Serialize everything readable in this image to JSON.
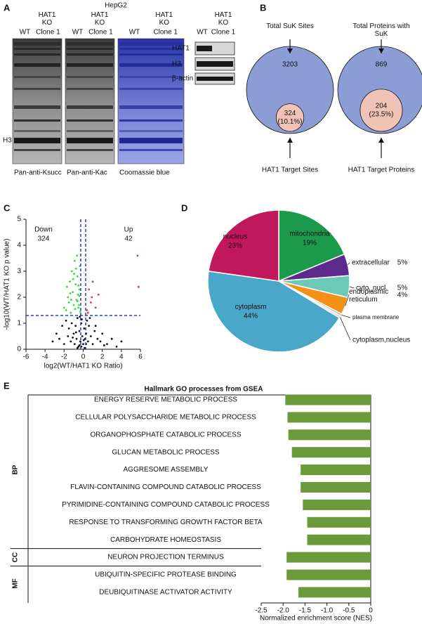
{
  "panel_labels": [
    "A",
    "B",
    "C",
    "D",
    "E"
  ],
  "blots": {
    "cell_line": "HepG2",
    "lanes": {
      "wt": "WT",
      "ko": "HAT1 KO",
      "clone": "Clone 1"
    },
    "captions": [
      "Pan-anti-Ksucc",
      "Pan-anti-Kac",
      "Coomassie blue"
    ],
    "marker": "H3",
    "small_blots": [
      "HAT1",
      "H3",
      "β-actin"
    ]
  },
  "venn": [
    {
      "title": "Total SuK Sites",
      "total": 3203,
      "target": 324,
      "percent": {
        "value": 10.1,
        "label": "(10.1%)"
      },
      "target_label": "HAT1 Target Sites"
    },
    {
      "title": "Total Proteins with SuK",
      "total": 869,
      "target": 204,
      "percent": {
        "value": 23.5,
        "label": "(23.5%)"
      },
      "target_label": "HAT1 Target Proteins"
    }
  ],
  "chart_data": [
    {
      "type": "scatter",
      "x_label": "log2(WT/HAT1 KO Ratio)",
      "y_label": "-log10(WT/HAT1 KO p value)",
      "xlim": [
        -6,
        6
      ],
      "xticks": [
        -6,
        -4,
        -2,
        0,
        2,
        4,
        6
      ],
      "ylim": [
        0,
        5
      ],
      "yticks": [
        0,
        1,
        2,
        3,
        4,
        5
      ],
      "cutoffs": {
        "y": 1.3,
        "x": [
          -0.26,
          0.26
        ],
        "color": "#1f2fbf"
      },
      "annotations": [
        {
          "label": "Down",
          "count": 324
        },
        {
          "label": "Up",
          "count": 42
        }
      ],
      "series": [
        {
          "color": "#111111",
          "x": [
            -3.2,
            -2.8,
            -2.5,
            -2.2,
            -2.0,
            -1.8,
            -1.6,
            -1.5,
            -1.3,
            -1.2,
            -1.0,
            -0.9,
            -0.8,
            -0.7,
            -0.6,
            -0.5,
            -0.4,
            -0.3,
            -0.2,
            -0.1,
            0,
            0.1,
            0.2,
            0.3,
            0.4,
            0.5,
            0.6,
            0.8,
            1.0,
            1.2,
            1.5,
            1.8,
            2.0,
            2.5,
            3.0,
            3.5,
            4.0,
            -0.6,
            -0.4,
            -0.2,
            0.05,
            0.15,
            -0.35,
            -0.15,
            0.3,
            -1.1,
            -0.75,
            0.7,
            1.3,
            2.2
          ],
          "y": [
            0.3,
            0.6,
            0.4,
            0.9,
            0.2,
            1.1,
            0.5,
            0.8,
            0.3,
            1.0,
            0.6,
            0.2,
            0.9,
            0.4,
            1.2,
            0.1,
            0.7,
            0.3,
            1.0,
            0.5,
            0.2,
            0.8,
            0.4,
            0.6,
            1.1,
            0.3,
            0.9,
            0.5,
            0.2,
            0.7,
            0.4,
            0.3,
            0.6,
            0.2,
            0.4,
            0.1,
            0.3,
            0.05,
            0.15,
            0.1,
            0.35,
            0.05,
            1.25,
            1.15,
            0.2,
            0.45,
            0.65,
            1.2,
            0.9,
            0.15
          ]
        },
        {
          "color": "#33dd33",
          "x": [
            -1.8,
            -1.6,
            -1.5,
            -1.4,
            -1.3,
            -1.2,
            -1.1,
            -1.0,
            -0.9,
            -0.8,
            -0.7,
            -0.6,
            -0.5,
            -0.4,
            -0.35,
            -0.3,
            -1.7,
            -1.25,
            -0.95,
            -0.65,
            -0.55,
            -0.45,
            -1.05,
            -0.85,
            -0.75,
            -1.35,
            -0.5,
            -0.6,
            -0.4,
            -2.0
          ],
          "y": [
            1.5,
            2.0,
            1.8,
            2.6,
            1.4,
            3.0,
            2.2,
            1.7,
            3.4,
            2.5,
            1.9,
            2.8,
            1.6,
            2.3,
            3.2,
            1.45,
            2.4,
            1.9,
            2.9,
            3.6,
            2.1,
            1.7,
            2.7,
            1.55,
            3.1,
            2.15,
            2.45,
            1.85,
            2.05,
            1.6
          ]
        },
        {
          "color": "#ee3333",
          "x": [
            0.4,
            0.6,
            0.8,
            1.0,
            1.3,
            1.6,
            0.5,
            0.9,
            5.7,
            5.8
          ],
          "y": [
            1.5,
            2.3,
            1.8,
            2.6,
            1.6,
            2.1,
            1.4,
            2.0,
            3.6,
            2.4
          ]
        }
      ]
    },
    {
      "type": "pie",
      "categories": [
        "mitochondria",
        "extracellular",
        "cyto_nucl",
        "endoplasmic reticulum",
        "plasma membrane",
        "cytoplasm,nucleus",
        "cytoplasm",
        "nucleus"
      ],
      "values": [
        19,
        5,
        5,
        4,
        0.5,
        0.5,
        44,
        23
      ],
      "value_labels": [
        "19%",
        "5%",
        "5%",
        "4%",
        null,
        null,
        "44%",
        "23%"
      ],
      "colors": [
        "#1a9a4a",
        "#5b2a8c",
        "#6cc9b9",
        "#f39016",
        "#b8b8b8",
        "#d8d8d8",
        "#4aa7c9",
        "#c0185a"
      ]
    },
    {
      "type": "bar",
      "orientation": "horizontal",
      "title": "Hallmark GO processes from GSEA",
      "x_label": "Normalized enrichment score (NES)",
      "xlim": [
        -2.5,
        0
      ],
      "xticks": [
        -2.5,
        {
          "value": -2,
          "label": "-2.0"
        },
        -1.5,
        {
          "value": -1,
          "label": "-1.0"
        },
        -0.5,
        0
      ],
      "color": "#6a9a3a",
      "groups": [
        {
          "label": "BP",
          "categories": [
            "ENERGY RESERVE METABOLIC PROCESS",
            "CELLULAR POLYSACCHARIDE METABOLIC PROCESS",
            "ORGANOPHOSPHATE CATABOLIC PROCESS",
            "GLUCAN METABOLIC PROCESS",
            "AGGRESOME ASSEMBLY",
            "FLAVIN-CONTAINING COMPOUND CATABOLIC PROCESS",
            "PYRIMIDINE-CONTAINING COMPOUND CATABOLIC PROCESS",
            "RESPONSE TO TRANSFORMING GROWTH FACTOR BETA",
            "CARBOHYDRATE HOMEOSTASIS"
          ],
          "values": [
            -1.95,
            -1.9,
            -1.88,
            -1.8,
            -1.6,
            -1.6,
            -1.55,
            -1.45,
            -1.45
          ]
        },
        {
          "label": "CC",
          "categories": [
            "NEURON PROJECTION TERMINUS"
          ],
          "values": [
            -1.92
          ]
        },
        {
          "label": "MF",
          "categories": [
            "UBIQUITIN-SPECIFIC PROTEASE BINDING",
            "DEUBIQUITINASE ACTIVATOR ACTIVITY"
          ],
          "values": [
            -1.92,
            -1.65
          ]
        }
      ]
    }
  ]
}
